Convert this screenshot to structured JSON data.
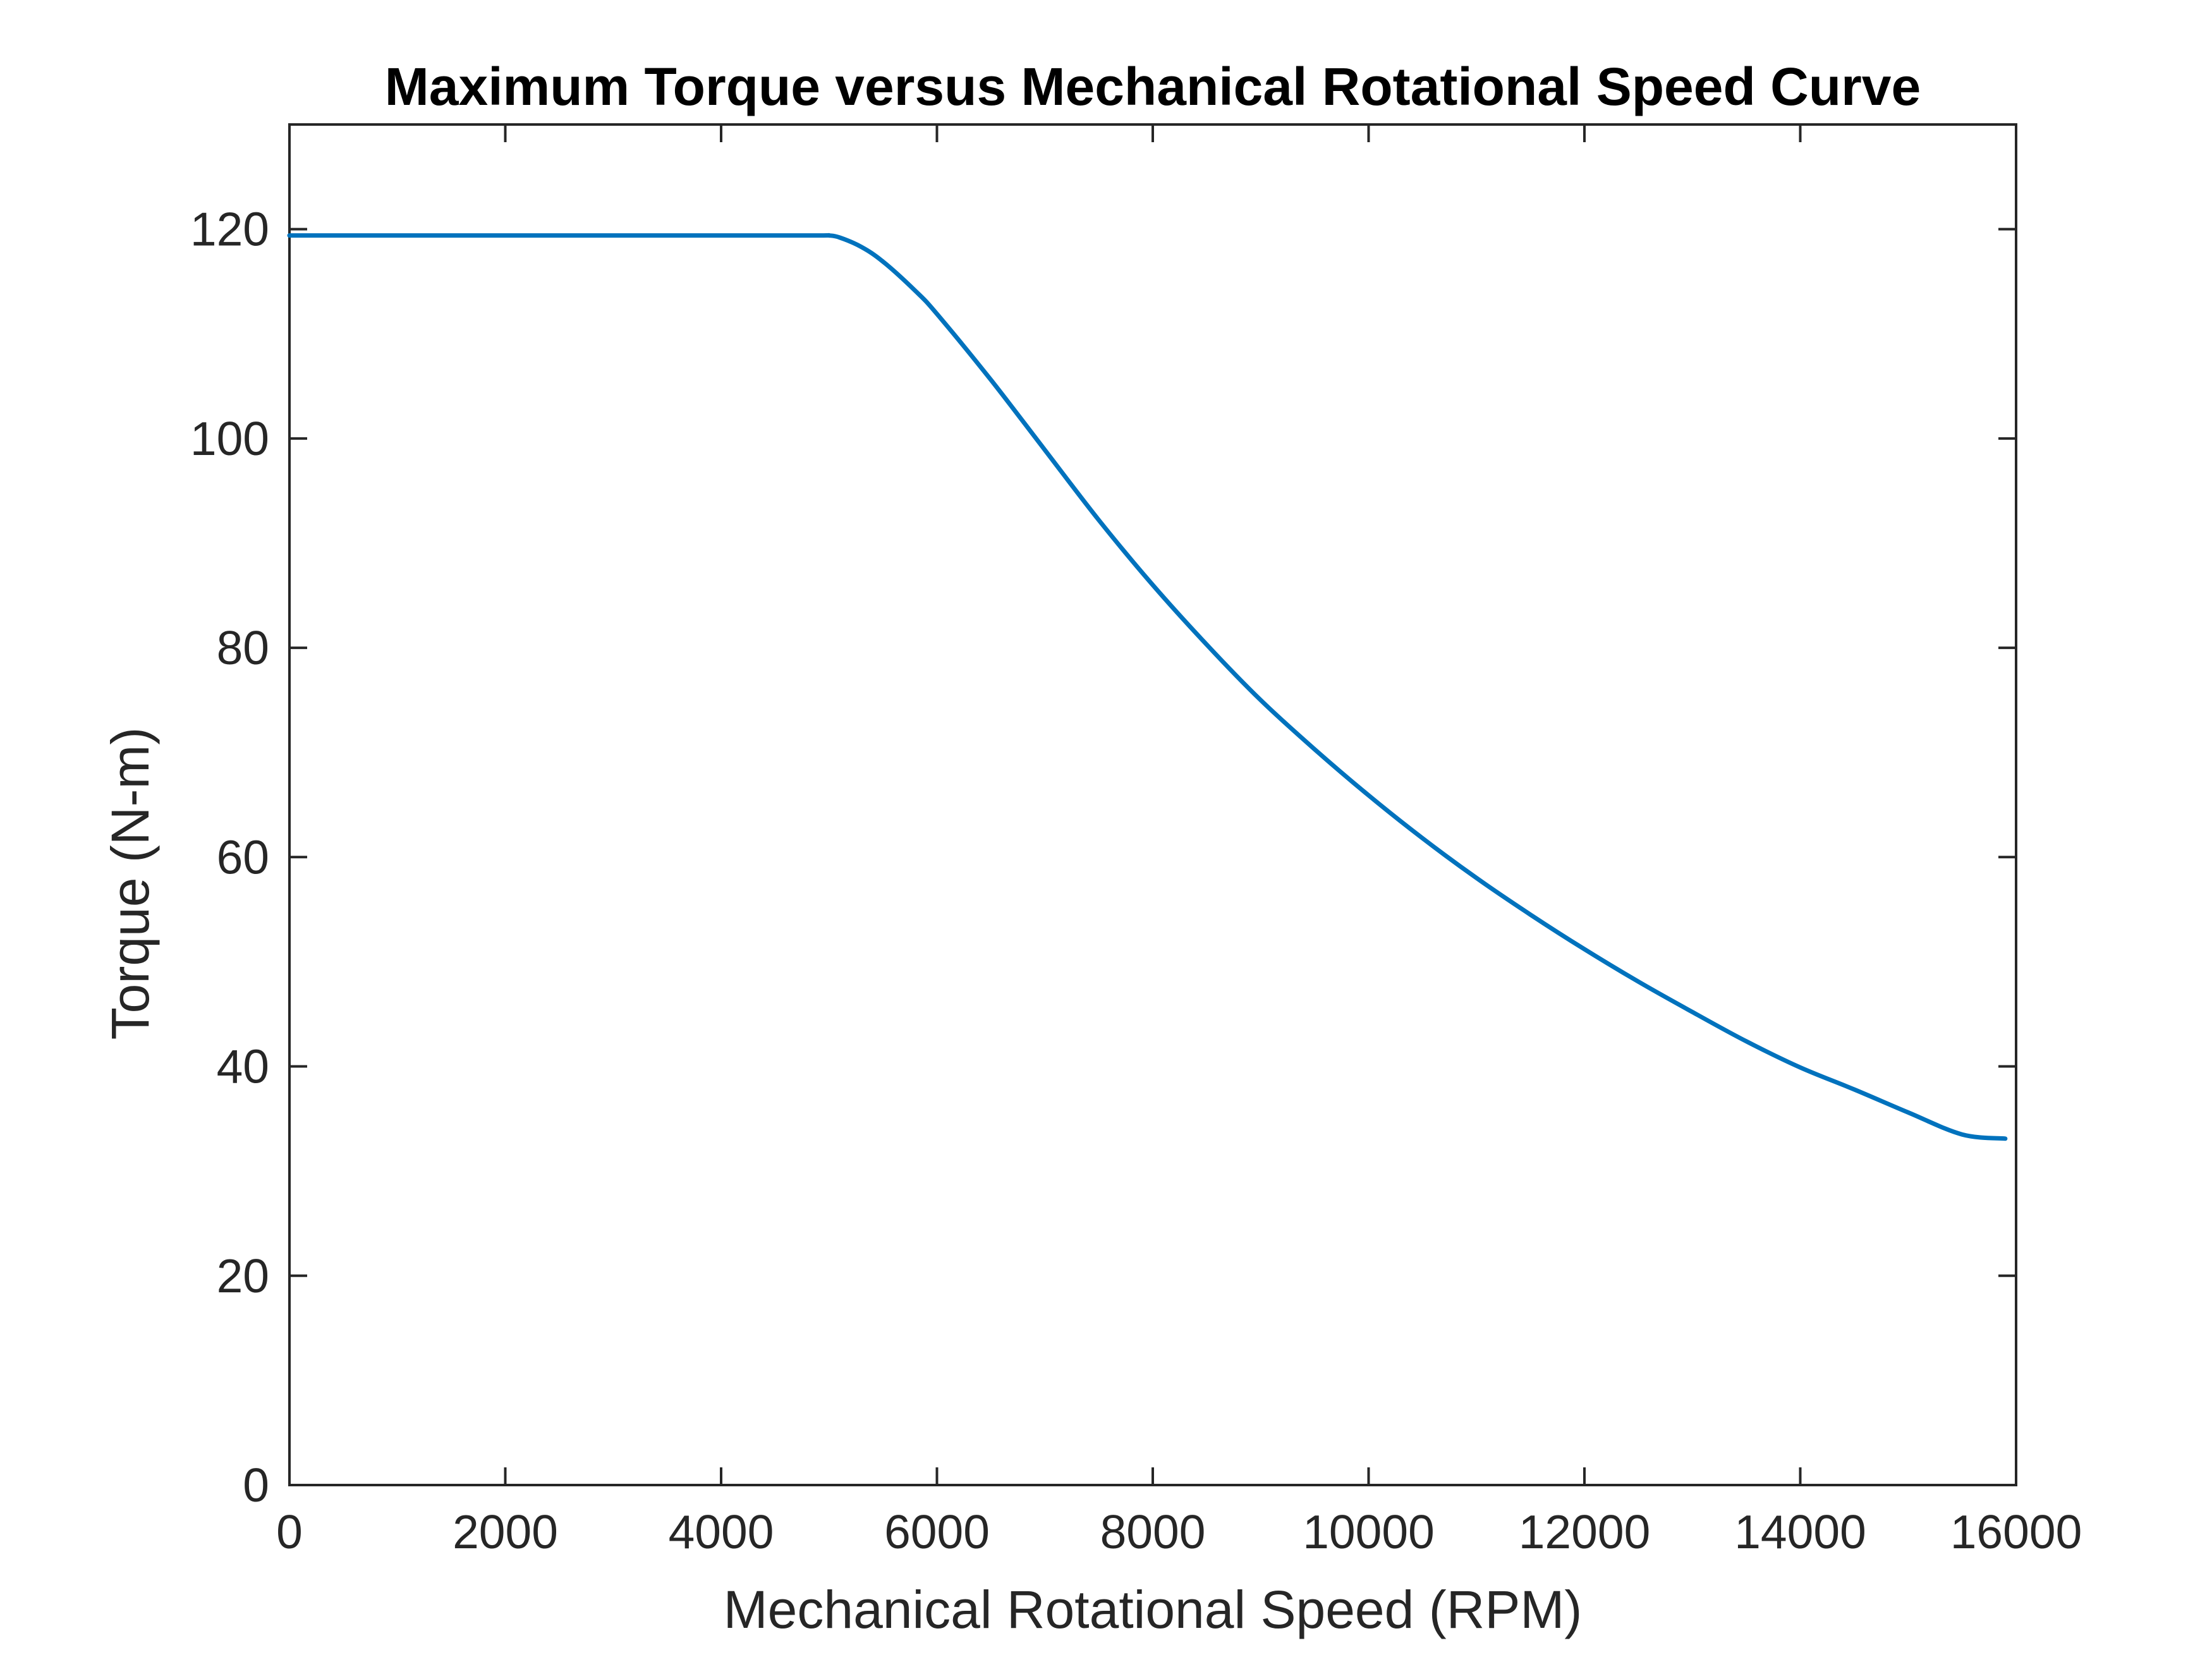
{
  "chart_data": {
    "type": "line",
    "title": "Maximum Torque versus Mechanical Rotational Speed Curve",
    "xlabel": "Mechanical Rotational Speed (RPM)",
    "ylabel": "Torque (N-m)",
    "xlim": [
      0,
      16000
    ],
    "ylim": [
      0,
      130
    ],
    "xticks": [
      0,
      2000,
      4000,
      6000,
      8000,
      10000,
      12000,
      14000,
      16000
    ],
    "yticks": [
      0,
      20,
      40,
      60,
      80,
      100,
      120
    ],
    "grid": false,
    "series": [
      {
        "color": "#0072BD",
        "x": [
          0,
          1000,
          2000,
          3000,
          4000,
          4900,
          5000,
          5100,
          5300,
          5500,
          5800,
          6000,
          6500,
          7000,
          7500,
          8000,
          8500,
          9000,
          9500,
          10000,
          10500,
          11000,
          11500,
          12000,
          12500,
          13000,
          13500,
          14000,
          14500,
          15000,
          15500,
          15900
        ],
        "y": [
          119.4,
          119.4,
          119.4,
          119.4,
          119.4,
          119.4,
          119.4,
          119.2,
          118.3,
          116.9,
          114.1,
          111.9,
          105.6,
          98.9,
          92.2,
          86.0,
          80.3,
          75.0,
          70.3,
          65.9,
          61.8,
          58.0,
          54.5,
          51.2,
          48.1,
          45.2,
          42.4,
          39.9,
          37.8,
          35.6,
          33.5,
          33.1
        ]
      }
    ]
  }
}
